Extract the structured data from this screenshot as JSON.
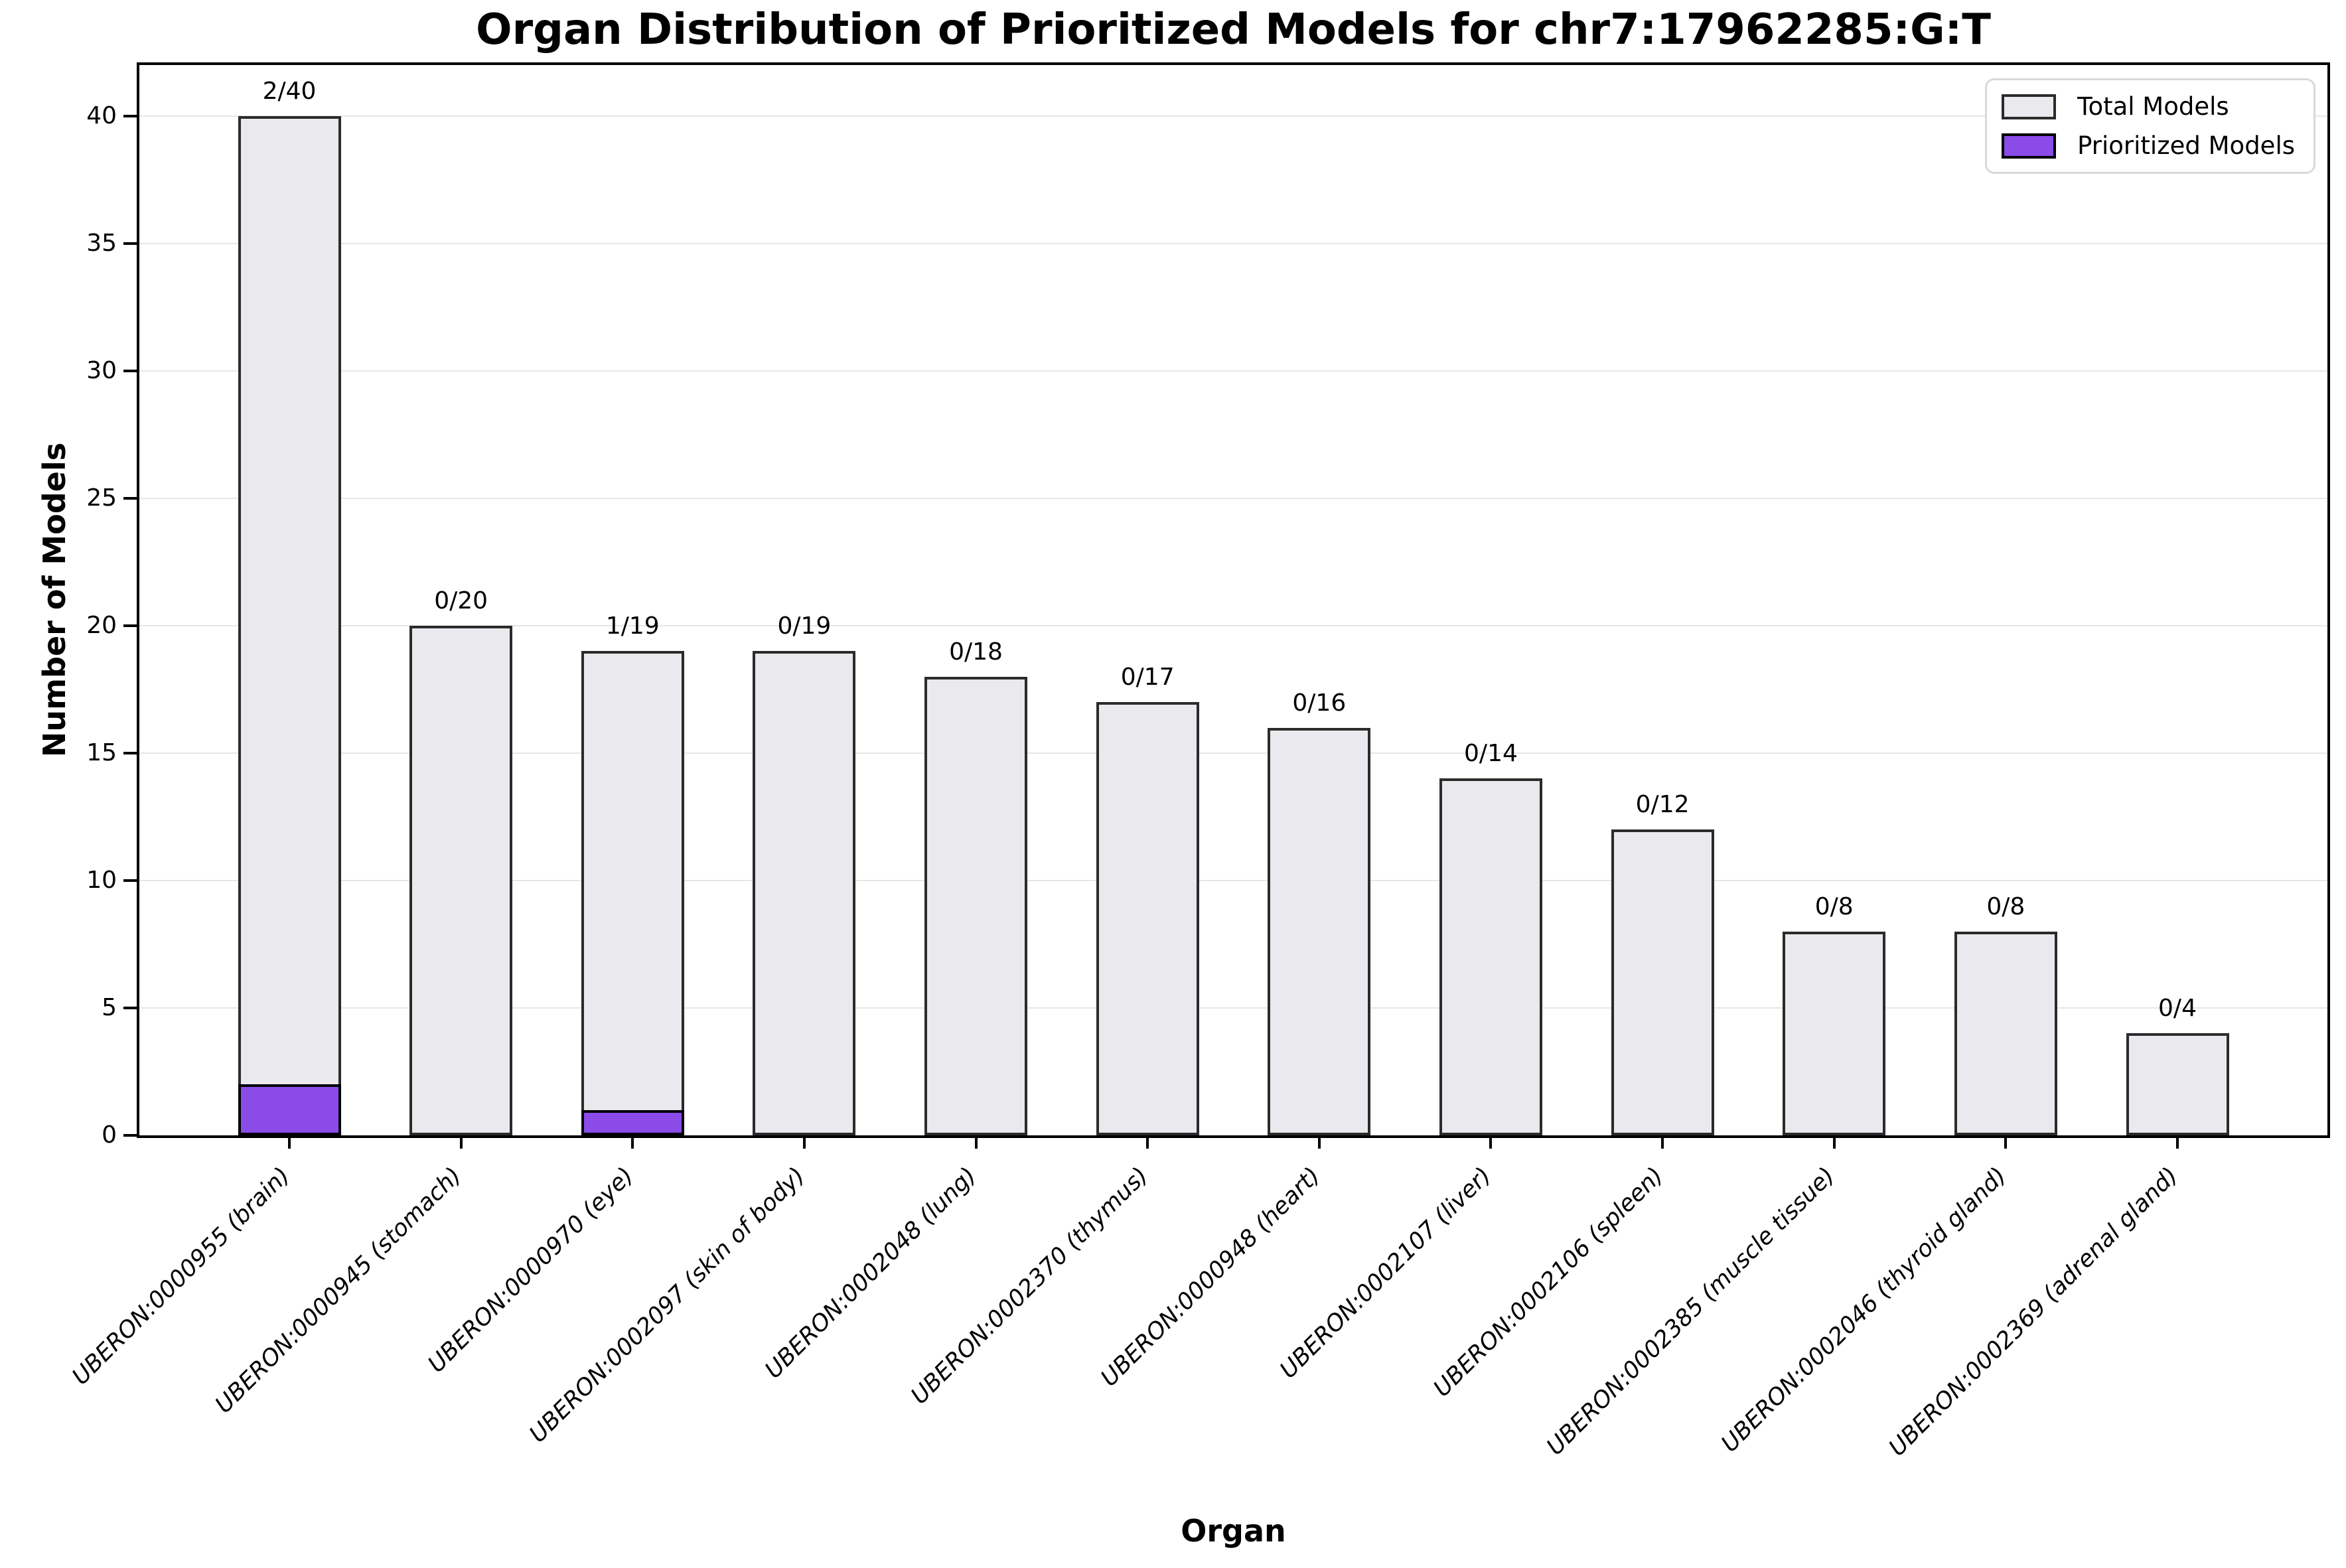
{
  "title": "Organ Distribution of Prioritized Models for chr7:17962285:G:T",
  "colors": {
    "total_fill": "#e9e9ee",
    "total_edge": "#2b2b2b",
    "prioritized_fill": "#8a4be8",
    "prioritized_edge": "#000000",
    "grid": "#e6e6e6",
    "spine": "#000000"
  },
  "legend": {
    "total_label": "Total Models",
    "prioritized_label": "Prioritized Models"
  },
  "chart_data": {
    "type": "bar",
    "title": "Organ Distribution of Prioritized Models for chr7:17962285:G:T",
    "xlabel": "Organ",
    "ylabel": "Number of Models",
    "ylim": [
      0,
      42
    ],
    "yticks": [
      0,
      5,
      10,
      15,
      20,
      25,
      30,
      35,
      40
    ],
    "grid": "horizontal",
    "legend_position": "upper right",
    "categories": [
      "UBERON:0000955 (brain)",
      "UBERON:0000945 (stomach)",
      "UBERON:0000970 (eye)",
      "UBERON:0002097 (skin of body)",
      "UBERON:0002048 (lung)",
      "UBERON:0002370 (thymus)",
      "UBERON:0000948 (heart)",
      "UBERON:0002107 (liver)",
      "UBERON:0002106 (spleen)",
      "UBERON:0002385 (muscle tissue)",
      "UBERON:0002046 (thyroid gland)",
      "UBERON:0002369 (adrenal gland)"
    ],
    "series": [
      {
        "name": "Total Models",
        "values": [
          40,
          20,
          19,
          19,
          18,
          17,
          16,
          14,
          12,
          8,
          8,
          4
        ]
      },
      {
        "name": "Prioritized Models",
        "values": [
          2,
          0,
          1,
          0,
          0,
          0,
          0,
          0,
          0,
          0,
          0,
          0
        ]
      }
    ],
    "bar_labels": [
      "2/40",
      "0/20",
      "1/19",
      "0/19",
      "0/18",
      "0/17",
      "0/16",
      "0/14",
      "0/12",
      "0/8",
      "0/8",
      "0/4"
    ]
  }
}
